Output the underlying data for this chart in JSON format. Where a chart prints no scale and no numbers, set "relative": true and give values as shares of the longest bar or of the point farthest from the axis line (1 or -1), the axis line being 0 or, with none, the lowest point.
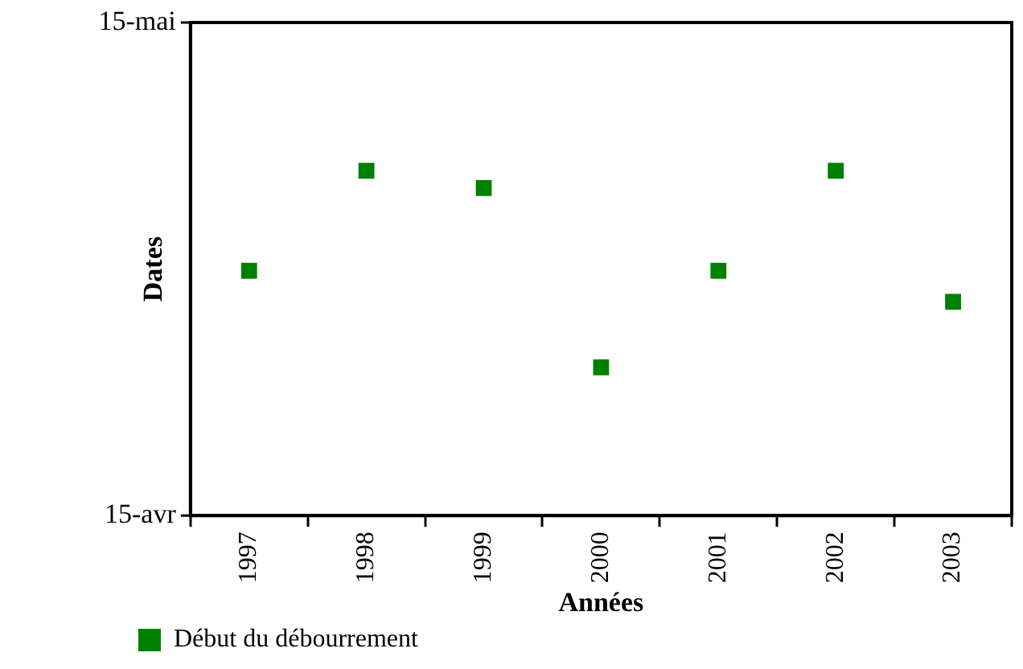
{
  "chart_data": {
    "type": "scatter",
    "xlabel": "Années",
    "ylabel": "Dates",
    "relative": true,
    "categories": [
      "1997",
      "1998",
      "1999",
      "2000",
      "2001",
      "2002",
      "2003"
    ],
    "series": [
      {
        "name": "Début du débourrement",
        "color": "#008000",
        "values": [
          0.71,
          1,
          0.95,
          0.43,
          0.71,
          1,
          0.62
        ]
      }
    ],
    "annotations": [
      "15-avr",
      "15-mai"
    ],
    "marker": "square",
    "legend": "bottom left"
  }
}
